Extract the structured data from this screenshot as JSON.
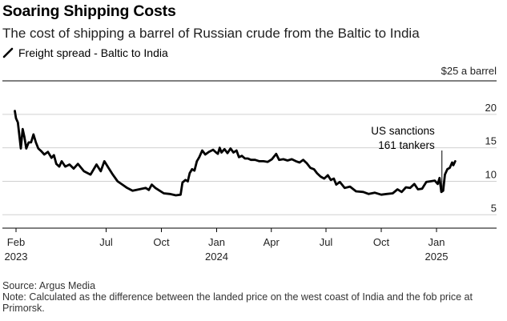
{
  "title": "Soaring Shipping Costs",
  "subtitle": "The cost of shipping a barrel of Russian crude from the Baltic to India",
  "legend_icon": "diagonal-line-icon",
  "footer": {
    "source": "Source: Argus Media",
    "note": "Note: Calculated as the difference between the landed price on the west coast of India and the fob price at Primorsk."
  },
  "chart_data": {
    "type": "line",
    "title": "Soaring Shipping Costs",
    "ylabel": "$25 a barrel",
    "ylim": [
      3,
      25
    ],
    "yticks": [
      5,
      10,
      15,
      20
    ],
    "ytick_labels": [
      "5",
      "10",
      "15",
      "20"
    ],
    "xticks": [
      {
        "date": "2023-02-01",
        "label": "Feb",
        "year": "2023"
      },
      {
        "date": "2023-07-01",
        "label": "Jul",
        "year": ""
      },
      {
        "date": "2023-10-01",
        "label": "Oct",
        "year": ""
      },
      {
        "date": "2024-01-01",
        "label": "Jan",
        "year": "2024"
      },
      {
        "date": "2024-04-01",
        "label": "Apr",
        "year": ""
      },
      {
        "date": "2024-07-01",
        "label": "Jul",
        "year": ""
      },
      {
        "date": "2024-10-01",
        "label": "Oct",
        "year": ""
      },
      {
        "date": "2025-01-01",
        "label": "Jan",
        "year": "2025"
      }
    ],
    "grid": true,
    "series": [
      {
        "name": "Freight spread - Baltic to India",
        "color": "#000000",
        "points": [
          [
            "2023-01-30",
            20.5
          ],
          [
            "2023-02-01",
            19.4
          ],
          [
            "2023-02-04",
            18.8
          ],
          [
            "2023-02-07",
            16.5
          ],
          [
            "2023-02-09",
            14.9
          ],
          [
            "2023-02-12",
            17.8
          ],
          [
            "2023-02-15",
            16.6
          ],
          [
            "2023-02-18",
            14.9
          ],
          [
            "2023-02-22",
            15.8
          ],
          [
            "2023-02-26",
            15.8
          ],
          [
            "2023-03-02",
            17.0
          ],
          [
            "2023-03-06",
            15.8
          ],
          [
            "2023-03-10",
            14.9
          ],
          [
            "2023-03-15",
            14.5
          ],
          [
            "2023-03-20",
            14.0
          ],
          [
            "2023-03-26",
            14.4
          ],
          [
            "2023-04-01",
            13.5
          ],
          [
            "2023-04-05",
            13.9
          ],
          [
            "2023-04-09",
            12.6
          ],
          [
            "2023-04-14",
            12.2
          ],
          [
            "2023-04-18",
            13.0
          ],
          [
            "2023-04-24",
            12.2
          ],
          [
            "2023-05-01",
            12.5
          ],
          [
            "2023-05-08",
            11.9
          ],
          [
            "2023-05-15",
            12.6
          ],
          [
            "2023-05-25",
            11.5
          ],
          [
            "2023-06-05",
            11.0
          ],
          [
            "2023-06-15",
            12.5
          ],
          [
            "2023-06-22",
            11.5
          ],
          [
            "2023-06-28",
            13.0
          ],
          [
            "2023-07-05",
            12.0
          ],
          [
            "2023-07-12",
            11.0
          ],
          [
            "2023-07-20",
            10.0
          ],
          [
            "2023-07-28",
            9.5
          ],
          [
            "2023-08-05",
            9.0
          ],
          [
            "2023-08-14",
            8.6
          ],
          [
            "2023-08-25",
            8.8
          ],
          [
            "2023-09-05",
            9.0
          ],
          [
            "2023-09-10",
            8.7
          ],
          [
            "2023-09-15",
            9.5
          ],
          [
            "2023-09-21",
            9.0
          ],
          [
            "2023-09-28",
            8.6
          ],
          [
            "2023-10-05",
            8.2
          ],
          [
            "2023-10-15",
            8.1
          ],
          [
            "2023-10-25",
            7.9
          ],
          [
            "2023-11-02",
            8.0
          ],
          [
            "2023-11-05",
            9.8
          ],
          [
            "2023-11-10",
            10.2
          ],
          [
            "2023-11-14",
            10.0
          ],
          [
            "2023-11-17",
            11.2
          ],
          [
            "2023-11-21",
            11.8
          ],
          [
            "2023-11-25",
            11.6
          ],
          [
            "2023-11-29",
            13.0
          ],
          [
            "2023-12-03",
            13.6
          ],
          [
            "2023-12-08",
            14.6
          ],
          [
            "2023-12-13",
            14.0
          ],
          [
            "2023-12-19",
            14.4
          ],
          [
            "2023-12-26",
            14.7
          ],
          [
            "2023-12-31",
            14.3
          ],
          [
            "2024-01-03",
            14.1
          ],
          [
            "2024-01-06",
            15.0
          ],
          [
            "2024-01-09",
            14.3
          ],
          [
            "2024-01-14",
            14.8
          ],
          [
            "2024-01-19",
            14.2
          ],
          [
            "2024-01-24",
            14.9
          ],
          [
            "2024-01-29",
            14.3
          ],
          [
            "2024-02-03",
            14.6
          ],
          [
            "2024-02-07",
            13.6
          ],
          [
            "2024-02-12",
            13.8
          ],
          [
            "2024-02-17",
            13.4
          ],
          [
            "2024-02-22",
            13.4
          ],
          [
            "2024-02-27",
            13.2
          ],
          [
            "2024-03-05",
            13.2
          ],
          [
            "2024-03-12",
            13.0
          ],
          [
            "2024-03-19",
            13.0
          ],
          [
            "2024-03-26",
            12.9
          ],
          [
            "2024-04-02",
            13.3
          ],
          [
            "2024-04-09",
            14.1
          ],
          [
            "2024-04-14",
            13.2
          ],
          [
            "2024-04-21",
            13.3
          ],
          [
            "2024-04-28",
            13.1
          ],
          [
            "2024-05-05",
            13.3
          ],
          [
            "2024-05-12",
            13.0
          ],
          [
            "2024-05-18",
            12.8
          ],
          [
            "2024-05-24",
            13.2
          ],
          [
            "2024-05-30",
            12.7
          ],
          [
            "2024-06-05",
            12.0
          ],
          [
            "2024-06-11",
            11.8
          ],
          [
            "2024-06-16",
            11.2
          ],
          [
            "2024-06-22",
            10.7
          ],
          [
            "2024-06-28",
            10.4
          ],
          [
            "2024-07-04",
            10.9
          ],
          [
            "2024-07-09",
            10.2
          ],
          [
            "2024-07-14",
            10.4
          ],
          [
            "2024-07-18",
            9.5
          ],
          [
            "2024-07-24",
            9.9
          ],
          [
            "2024-08-01",
            9.0
          ],
          [
            "2024-08-10",
            9.2
          ],
          [
            "2024-08-20",
            8.5
          ],
          [
            "2024-09-01",
            8.4
          ],
          [
            "2024-09-10",
            8.1
          ],
          [
            "2024-09-20",
            8.3
          ],
          [
            "2024-10-01",
            8.0
          ],
          [
            "2024-10-10",
            8.1
          ],
          [
            "2024-10-20",
            8.2
          ],
          [
            "2024-10-28",
            8.8
          ],
          [
            "2024-11-04",
            8.4
          ],
          [
            "2024-11-11",
            9.1
          ],
          [
            "2024-11-18",
            9.0
          ],
          [
            "2024-11-25",
            9.6
          ],
          [
            "2024-12-01",
            8.8
          ],
          [
            "2024-12-08",
            8.9
          ],
          [
            "2024-12-15",
            9.9
          ],
          [
            "2024-12-22",
            10.0
          ],
          [
            "2024-12-29",
            10.1
          ],
          [
            "2025-01-03",
            9.6
          ],
          [
            "2025-01-06",
            10.5
          ],
          [
            "2025-01-09",
            8.4
          ],
          [
            "2025-01-12",
            8.6
          ],
          [
            "2025-01-15",
            11.0
          ],
          [
            "2025-01-19",
            11.8
          ],
          [
            "2025-01-23",
            12.0
          ],
          [
            "2025-01-27",
            12.8
          ],
          [
            "2025-01-29",
            12.4
          ],
          [
            "2025-02-01",
            13.0
          ]
        ]
      }
    ],
    "annotations": [
      {
        "date": "2025-01-10",
        "lines": [
          "US sanctions",
          "161 tankers"
        ]
      }
    ]
  }
}
